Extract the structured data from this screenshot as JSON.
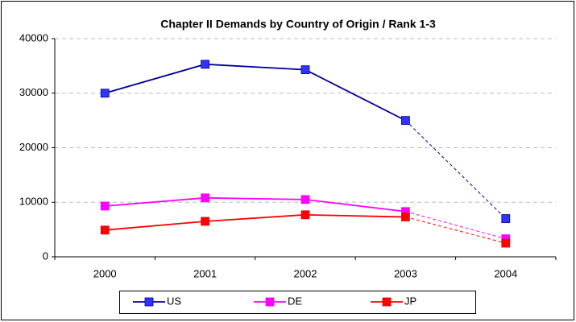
{
  "chart_data": {
    "type": "line",
    "title": "Chapter II Demands by Country of Origin / Rank 1-3",
    "categories": [
      "2000",
      "2001",
      "2002",
      "2003",
      "2004"
    ],
    "series": [
      {
        "name": "US",
        "color": "#000099",
        "marker_color": "#3333ff",
        "values": [
          30000,
          35300,
          34300,
          25000,
          7000
        ]
      },
      {
        "name": "DE",
        "color": "#ff00ff",
        "marker_color": "#ff00ff",
        "values": [
          9300,
          10800,
          10500,
          8300,
          3300
        ]
      },
      {
        "name": "JP",
        "color": "#ff0000",
        "marker_color": "#ff0000",
        "values": [
          4900,
          6500,
          7700,
          7300,
          2500
        ]
      }
    ],
    "dashed_from": 3,
    "ylim": [
      0,
      40000
    ],
    "yticks": [
      0,
      10000,
      20000,
      30000,
      40000
    ],
    "grid": true,
    "legend": "bottom"
  }
}
